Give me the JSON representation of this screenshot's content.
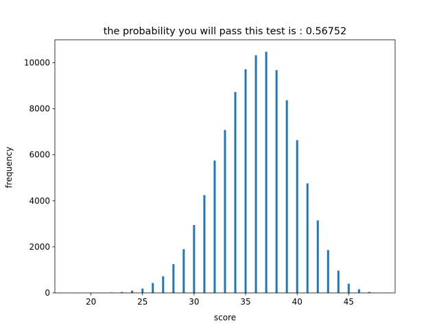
{
  "chart_data": {
    "type": "bar",
    "title": "the probability you will pass this test is : 0.56752",
    "xlabel": "score",
    "ylabel": "frequency",
    "xlim": [
      16.5,
      49.5
    ],
    "ylim": [
      0,
      11000
    ],
    "xticks": [
      20,
      25,
      30,
      35,
      40,
      45
    ],
    "yticks": [
      0,
      2000,
      4000,
      6000,
      8000,
      10000
    ],
    "grid": false,
    "bar_color": "#1f77b4",
    "x": [
      18,
      19,
      20,
      21,
      22,
      23,
      24,
      25,
      26,
      27,
      28,
      29,
      30,
      31,
      32,
      33,
      34,
      35,
      36,
      37,
      38,
      39,
      40,
      41,
      42,
      43,
      44,
      45,
      46,
      47
    ],
    "values": [
      2,
      3,
      5,
      8,
      20,
      40,
      100,
      190,
      430,
      720,
      1250,
      1900,
      2950,
      4250,
      5750,
      7080,
      8730,
      9720,
      10330,
      10480,
      9680,
      8370,
      6640,
      4760,
      3150,
      1860,
      970,
      400,
      160,
      40
    ]
  }
}
